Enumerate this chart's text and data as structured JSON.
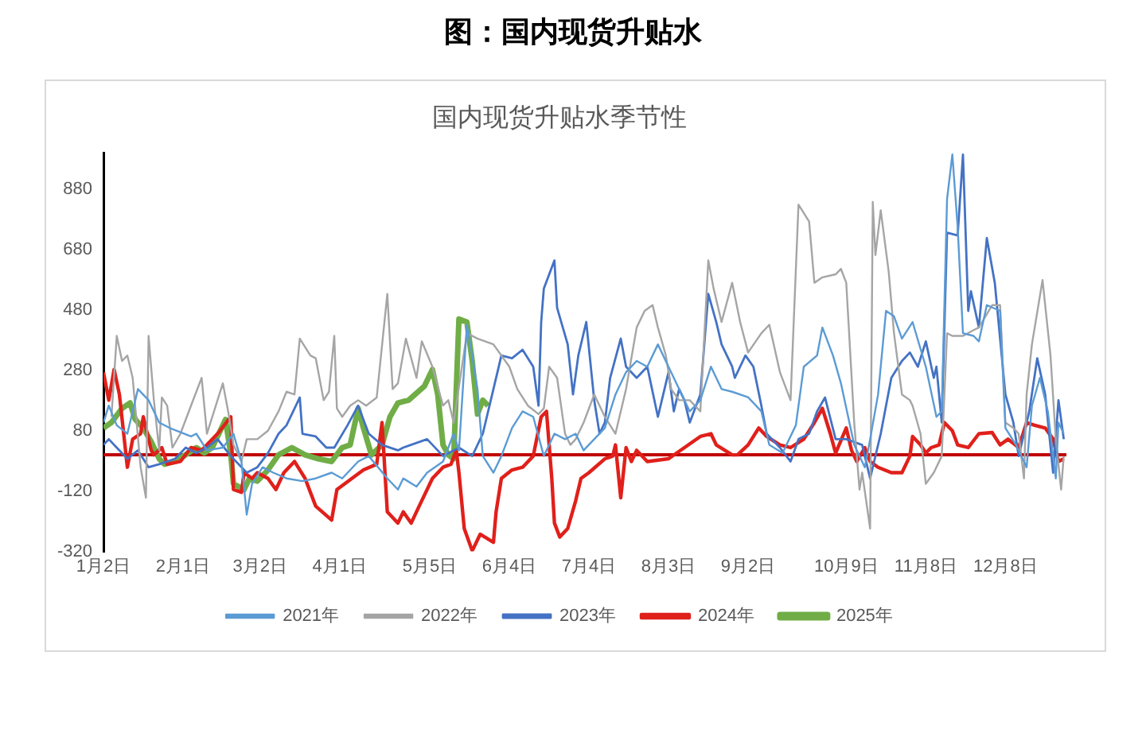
{
  "chart_data": {
    "type": "line",
    "title": "图：国内现货升贴水",
    "subtitle": "国内现货升贴水季节性",
    "xlim": [
      "--01-02",
      "--12-31"
    ],
    "xticks": [
      {
        "value": "--01-02",
        "label": "1月2日"
      },
      {
        "value": "--02-01",
        "label": "2月1日"
      },
      {
        "value": "--03-02",
        "label": "3月2日"
      },
      {
        "value": "--04-01",
        "label": "4月1日"
      },
      {
        "value": "--05-05",
        "label": "5月5日"
      },
      {
        "value": "--06-04",
        "label": "6月4日"
      },
      {
        "value": "--07-04",
        "label": "7月4日"
      },
      {
        "value": "--08-03",
        "label": "8月3日"
      },
      {
        "value": "--09-02",
        "label": "9月2日"
      },
      {
        "value": "--10-09",
        "label": "10月9日"
      },
      {
        "value": "--11-08",
        "label": "11月8日"
      },
      {
        "value": "--12-08",
        "label": "12月8日"
      }
    ],
    "ylim": [
      -320,
      1000
    ],
    "yticks": [
      -320,
      -120,
      80,
      280,
      480,
      680,
      880
    ],
    "grid": false,
    "legend": "bottom",
    "marker": "none",
    "line_style": "solid",
    "ref_lines": [
      {
        "axis": "y",
        "value": 0,
        "color": "#c00000"
      }
    ],
    "series": [
      {
        "name": "2021年",
        "color": "#5b9bd5",
        "x": [
          "--01-02",
          "--01-04",
          "--01-07",
          "--01-11",
          "--01-15",
          "--01-19",
          "--01-23",
          "--01-27",
          "--02-04",
          "--02-06",
          "--02-10",
          "--02-16",
          "--02-20",
          "--02-23",
          "--02-25",
          "--02-27",
          "--03-03",
          "--03-07",
          "--03-12",
          "--03-18",
          "--03-23",
          "--03-29",
          "--04-02",
          "--04-08",
          "--04-12",
          "--04-19",
          "--04-23",
          "--04-25",
          "--04-30",
          "--05-04",
          "--05-10",
          "--05-14",
          "--05-16",
          "--05-19",
          "--05-21",
          "--05-23",
          "--05-25",
          "--05-29",
          "--06-01",
          "--06-05",
          "--06-09",
          "--06-13",
          "--06-17",
          "--06-21",
          "--06-25",
          "--06-29",
          "--07-02",
          "--07-10",
          "--07-14",
          "--07-18",
          "--07-22",
          "--07-26",
          "--07-30",
          "--08-03",
          "--08-07",
          "--08-11",
          "--08-15",
          "--08-19",
          "--08-23",
          "--08-27",
          "--09-02",
          "--09-07",
          "--09-10",
          "--09-15",
          "--09-20",
          "--09-23",
          "--09-28",
          "--09-30",
          "--10-04",
          "--10-07",
          "--10-12",
          "--10-16",
          "--10-18",
          "--10-21",
          "--10-24",
          "--10-27",
          "--10-30",
          "--11-03",
          "--11-08",
          "--11-12",
          "--11-14",
          "--11-16",
          "--11-18",
          "--11-20",
          "--11-22",
          "--11-26",
          "--11-28",
          "--12-01",
          "--12-06",
          "--12-08",
          "--12-12",
          "--12-16",
          "--12-18",
          "--12-21",
          "--12-24",
          "--12-27",
          "--12-28",
          "--12-30"
        ],
        "values": [
          107,
          163,
          98,
          70,
          218,
          181,
          107,
          89,
          61,
          70,
          15,
          24,
          70,
          -22,
          -198,
          -96,
          -41,
          -59,
          -78,
          -87,
          -78,
          -59,
          -78,
          -22,
          -4,
          -78,
          -115,
          -78,
          -105,
          -59,
          -22,
          70,
          15,
          431,
          329,
          218,
          -4,
          -59,
          -4,
          89,
          144,
          126,
          -4,
          70,
          52,
          70,
          15,
          89,
          200,
          274,
          311,
          292,
          366,
          292,
          218,
          144,
          181,
          292,
          218,
          209,
          191,
          144,
          33,
          6,
          98,
          292,
          329,
          422,
          329,
          237,
          33,
          -41,
          52,
          200,
          477,
          459,
          385,
          440,
          292,
          126,
          144,
          847,
          995,
          755,
          403,
          394,
          376,
          496,
          477,
          89,
          33,
          -41,
          163,
          255,
          144,
          -78,
          107,
          70
        ]
      },
      {
        "name": "2022年",
        "color": "#a5a5a5",
        "x": [
          "--01-05",
          "--01-07",
          "--01-09",
          "--01-11",
          "--01-13",
          "--01-16",
          "--01-18",
          "--01-19",
          "--01-21",
          "--01-23",
          "--01-24",
          "--01-26",
          "--01-28",
          "--01-31",
          "--02-04",
          "--02-08",
          "--02-10",
          "--02-16",
          "--02-18",
          "--02-20",
          "--02-23",
          "--02-25",
          "--03-01",
          "--03-05",
          "--03-09",
          "--03-12",
          "--03-15",
          "--03-17",
          "--03-21",
          "--03-23",
          "--03-26",
          "--03-28",
          "--03-30",
          "--03-31",
          "--04-02",
          "--04-05",
          "--04-08",
          "--04-11",
          "--04-15",
          "--04-19",
          "--04-21",
          "--04-23",
          "--04-26",
          "--04-30",
          "--05-02",
          "--05-06",
          "--05-10",
          "--05-12",
          "--05-14",
          "--05-19",
          "--05-23",
          "--05-29",
          "--06-04",
          "--06-07",
          "--06-11",
          "--06-15",
          "--06-17",
          "--06-19",
          "--06-22",
          "--06-25",
          "--06-27",
          "--06-29",
          "--07-02",
          "--07-06",
          "--07-10",
          "--07-14",
          "--07-18",
          "--07-22",
          "--07-25",
          "--07-28",
          "--07-30",
          "--08-02",
          "--08-04",
          "--08-07",
          "--08-11",
          "--08-15",
          "--08-18",
          "--08-20",
          "--08-23",
          "--08-27",
          "--08-30",
          "--09-02",
          "--09-07",
          "--09-10",
          "--09-14",
          "--09-18",
          "--09-21",
          "--09-25",
          "--09-27",
          "--09-30",
          "--10-05",
          "--10-07",
          "--10-09",
          "--10-12",
          "--10-14",
          "--10-15",
          "--10-18",
          "--10-19",
          "--10-20",
          "--10-22",
          "--10-25",
          "--10-27",
          "--10-30",
          "--11-02",
          "--11-03",
          "--11-06",
          "--11-08",
          "--11-11",
          "--11-14",
          "--11-16",
          "--11-18",
          "--11-22",
          "--11-26",
          "--11-28",
          "--12-03",
          "--12-06",
          "--12-08",
          "--12-11",
          "--12-13",
          "--12-15",
          "--12-16",
          "--12-18",
          "--12-22",
          "--12-25",
          "--12-27",
          "--12-29",
          "--12-30"
        ],
        "values": [
          126,
          394,
          311,
          329,
          255,
          -41,
          -142,
          394,
          181,
          15,
          190,
          163,
          24,
          70,
          163,
          255,
          70,
          237,
          144,
          33,
          -22,
          52,
          52,
          80,
          144,
          209,
          200,
          385,
          329,
          320,
          181,
          209,
          394,
          154,
          126,
          163,
          181,
          163,
          190,
          533,
          218,
          237,
          385,
          255,
          376,
          292,
          163,
          181,
          107,
          403,
          385,
          366,
          292,
          218,
          163,
          135,
          154,
          292,
          255,
          70,
          33,
          52,
          107,
          200,
          126,
          70,
          218,
          422,
          477,
          496,
          422,
          329,
          218,
          181,
          181,
          144,
          644,
          551,
          440,
          570,
          440,
          339,
          403,
          431,
          274,
          181,
          829,
          773,
          570,
          588,
          598,
          616,
          570,
          107,
          -115,
          -59,
          -244,
          838,
          662,
          810,
          607,
          403,
          200,
          181,
          163,
          70,
          -96,
          -59,
          -4,
          403,
          394,
          394,
          413,
          422,
          496,
          496,
          107,
          89,
          70,
          -78,
          200,
          366,
          579,
          329,
          52,
          -115,
          -4
        ]
      },
      {
        "name": "2023年",
        "color": "#4472c4",
        "x": [
          "--01-02",
          "--01-04",
          "--01-07",
          "--01-11",
          "--01-15",
          "--01-19",
          "--01-23",
          "--01-29",
          "--02-02",
          "--02-06",
          "--02-10",
          "--02-14",
          "--02-19",
          "--02-25",
          "--03-01",
          "--03-05",
          "--03-09",
          "--03-12",
          "--03-17",
          "--03-18",
          "--03-23",
          "--03-27",
          "--03-30",
          "--04-04",
          "--04-08",
          "--04-12",
          "--04-17",
          "--04-23",
          "--04-25",
          "--05-04",
          "--05-10",
          "--05-16",
          "--05-21",
          "--05-25",
          "--05-29",
          "--06-01",
          "--06-05",
          "--06-09",
          "--06-13",
          "--06-15",
          "--06-16",
          "--06-17",
          "--06-21",
          "--06-22",
          "--06-26",
          "--06-28",
          "--06-30",
          "--07-03",
          "--07-06",
          "--07-08",
          "--07-10",
          "--07-12",
          "--07-16",
          "--07-18",
          "--07-22",
          "--07-26",
          "--07-30",
          "--08-03",
          "--08-05",
          "--08-07",
          "--08-09",
          "--08-11",
          "--08-15",
          "--08-18",
          "--08-21",
          "--08-23",
          "--08-27",
          "--08-28",
          "--09-01",
          "--09-04",
          "--09-07",
          "--09-09",
          "--09-14",
          "--09-18",
          "--09-21",
          "--09-25",
          "--09-28",
          "--10-01",
          "--10-05",
          "--10-09",
          "--10-15",
          "--10-18",
          "--10-22",
          "--10-26",
          "--10-30",
          "--11-02",
          "--11-05",
          "--11-08",
          "--11-11",
          "--11-12",
          "--11-14",
          "--11-16",
          "--11-20",
          "--11-22",
          "--11-24",
          "--11-25",
          "--11-28",
          "--12-01",
          "--12-04",
          "--12-08",
          "--12-11",
          "--12-13",
          "--12-17",
          "--12-20",
          "--12-23",
          "--12-26",
          "--12-28",
          "--12-30"
        ],
        "values": [
          33,
          52,
          24,
          -13,
          15,
          -41,
          -31,
          -13,
          24,
          6,
          24,
          52,
          -4,
          -59,
          -41,
          6,
          70,
          98,
          190,
          70,
          61,
          24,
          24,
          98,
          163,
          70,
          33,
          15,
          24,
          52,
          -4,
          24,
          -4,
          70,
          218,
          329,
          320,
          348,
          292,
          163,
          440,
          551,
          644,
          487,
          366,
          200,
          329,
          440,
          181,
          70,
          107,
          255,
          385,
          292,
          255,
          292,
          126,
          274,
          144,
          218,
          181,
          107,
          200,
          533,
          440,
          366,
          292,
          255,
          329,
          292,
          163,
          70,
          24,
          -22,
          52,
          70,
          144,
          190,
          52,
          52,
          33,
          -78,
          70,
          255,
          311,
          339,
          292,
          376,
          255,
          292,
          107,
          736,
          727,
          995,
          477,
          542,
          422,
          718,
          570,
          200,
          107,
          -4,
          144,
          320,
          200,
          -59,
          181,
          52
        ]
      },
      {
        "name": "2024年",
        "color": "#e0201b",
        "x": [
          "--01-02",
          "--01-04",
          "--01-06",
          "--01-08",
          "--01-11",
          "--01-13",
          "--01-16",
          "--01-17",
          "--01-20",
          "--01-21",
          "--01-24",
          "--01-26",
          "--01-31",
          "--02-04",
          "--02-08",
          "--02-14",
          "--02-19",
          "--02-20",
          "--02-23",
          "--02-24",
          "--02-27",
          "--03-01",
          "--03-05",
          "--03-08",
          "--03-11",
          "--03-15",
          "--03-19",
          "--03-23",
          "--03-29",
          "--03-31",
          "--04-10",
          "--04-15",
          "--04-17",
          "--04-19",
          "--04-23",
          "--04-25",
          "--04-28",
          "--05-01",
          "--05-06",
          "--05-10",
          "--05-13",
          "--05-15",
          "--05-16",
          "--05-18",
          "--05-21",
          "--05-24",
          "--05-29",
          "--05-30",
          "--06-01",
          "--06-05",
          "--06-09",
          "--06-13",
          "--06-16",
          "--06-18",
          "--06-20",
          "--06-21",
          "--06-23",
          "--06-26",
          "--06-29",
          "--07-01",
          "--07-04",
          "--07-10",
          "--07-13",
          "--07-14",
          "--07-16",
          "--07-18",
          "--07-20",
          "--07-22",
          "--07-26",
          "--08-03",
          "--08-09",
          "--08-15",
          "--08-19",
          "--08-21",
          "--08-27",
          "--08-29",
          "--09-02",
          "--09-06",
          "--09-09",
          "--09-14",
          "--09-18",
          "--09-23",
          "--09-27",
          "--09-30",
          "--10-03",
          "--10-05",
          "--10-09",
          "--10-11",
          "--10-13",
          "--10-16",
          "--10-18",
          "--10-21",
          "--10-26",
          "--10-30",
          "--11-02",
          "--11-03",
          "--11-06",
          "--11-08",
          "--11-10",
          "--11-13",
          "--11-15",
          "--11-18",
          "--11-20",
          "--11-24",
          "--11-28",
          "--12-03",
          "--12-06",
          "--12-09",
          "--12-13",
          "--12-16",
          "--12-19",
          "--12-23",
          "--12-26",
          "--12-28",
          "--12-30"
        ],
        "values": [
          273,
          181,
          283,
          200,
          -41,
          52,
          70,
          126,
          15,
          0,
          24,
          -31,
          -22,
          24,
          15,
          70,
          126,
          -115,
          -124,
          -59,
          -78,
          -59,
          -78,
          -115,
          -59,
          -22,
          -78,
          -170,
          -216,
          -115,
          -50,
          -31,
          107,
          -189,
          -226,
          -189,
          -226,
          -170,
          -78,
          -41,
          -31,
          15,
          -59,
          -244,
          -318,
          -263,
          -290,
          -189,
          -78,
          -50,
          -41,
          -4,
          126,
          144,
          -78,
          -226,
          -272,
          -244,
          -152,
          -78,
          -59,
          -13,
          -4,
          33,
          -142,
          24,
          -22,
          15,
          -22,
          -13,
          24,
          61,
          70,
          33,
          0,
          0,
          33,
          89,
          61,
          33,
          24,
          52,
          107,
          154,
          70,
          6,
          89,
          15,
          -22,
          24,
          -22,
          -41,
          -59,
          -59,
          -4,
          61,
          33,
          6,
          24,
          33,
          107,
          80,
          33,
          24,
          70,
          74,
          33,
          52,
          24,
          107,
          98,
          89,
          52,
          -22,
          -13
        ]
      },
      {
        "name": "2025年",
        "color": "#70ad47",
        "x": [
          "--01-02",
          "--01-05",
          "--01-09",
          "--01-12",
          "--01-14",
          "--01-17",
          "--01-20",
          "--01-23",
          "--01-25",
          "--01-29",
          "--02-03",
          "--02-06",
          "--02-09",
          "--02-12",
          "--02-17",
          "--02-19",
          "--02-20",
          "--02-24",
          "--02-26",
          "--03-01",
          "--03-05",
          "--03-09",
          "--03-14",
          "--03-19",
          "--03-24",
          "--03-29",
          "--04-02",
          "--04-05",
          "--04-08",
          "--04-10",
          "--04-13",
          "--04-17",
          "--04-20",
          "--04-23",
          "--04-27",
          "--05-03",
          "--05-06",
          "--05-08",
          "--05-10",
          "--05-12",
          "--05-14",
          "--05-16",
          "--05-19",
          "--05-21",
          "--05-23",
          "--05-25",
          "--05-27"
        ],
        "values": [
          89,
          107,
          154,
          172,
          117,
          89,
          43,
          -13,
          -31,
          -22,
          6,
          24,
          6,
          24,
          117,
          0,
          -96,
          -115,
          -78,
          -87,
          -50,
          0,
          24,
          0,
          -13,
          -22,
          24,
          33,
          154,
          89,
          0,
          33,
          126,
          172,
          181,
          228,
          283,
          200,
          33,
          0,
          -13,
          450,
          440,
          311,
          135,
          181,
          163
        ]
      }
    ]
  }
}
